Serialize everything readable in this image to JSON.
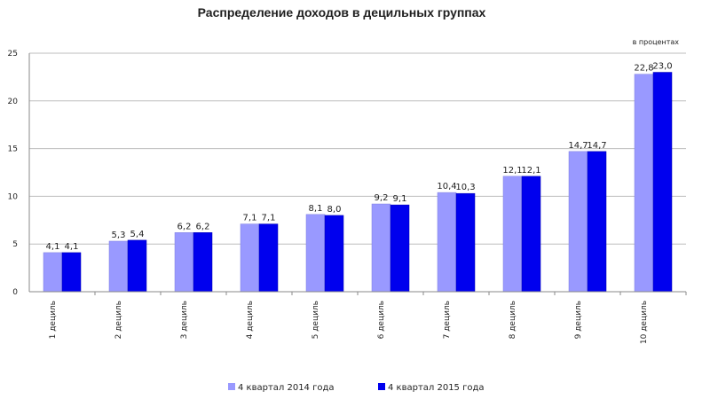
{
  "chart_data": {
    "type": "bar",
    "title": "Распределение доходов в децильных группах",
    "units_note": "в процентах",
    "categories": [
      "1 дециль",
      "2 дециль",
      "3 дециль",
      "4 дециль",
      "5 дециль",
      "6 дециль",
      "7 дециль",
      "8 дециль",
      "9 дециль",
      "10 дециль"
    ],
    "series": [
      {
        "name": "4 квартал 2014 года",
        "color": "#9999ff",
        "values": [
          4.1,
          5.3,
          6.2,
          7.1,
          8.1,
          9.2,
          10.4,
          12.1,
          14.7,
          22.8
        ],
        "labels": [
          "4,1",
          "5,3",
          "6,2",
          "7,1",
          "8,1",
          "9,2",
          "10,4",
          "12,1",
          "14,7",
          "22,8"
        ]
      },
      {
        "name": "4 квартал 2015 года",
        "color": "#0000ee",
        "values": [
          4.1,
          5.4,
          6.2,
          7.1,
          8.0,
          9.1,
          10.3,
          12.1,
          14.7,
          23.0
        ],
        "labels": [
          "4,1",
          "5,4",
          "6,2",
          "7,1",
          "8,0",
          "9,1",
          "10,3",
          "12,1",
          "14,7",
          "23,0"
        ]
      }
    ],
    "ylim": [
      0,
      25
    ],
    "yticks": [
      0,
      5,
      10,
      15,
      20,
      25
    ],
    "grid": true,
    "legend_position": "bottom"
  }
}
